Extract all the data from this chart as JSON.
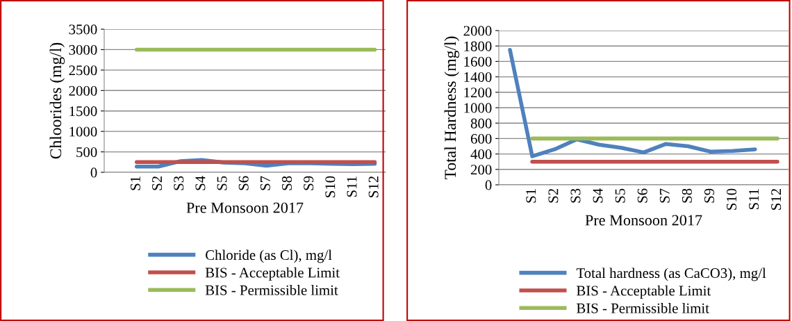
{
  "chart_data": [
    {
      "type": "line",
      "categories": [
        null,
        "S1",
        "S2",
        "S3",
        "S4",
        "S5",
        "S6",
        "S7",
        "S8",
        "S9",
        "S10",
        "S11",
        "S12"
      ],
      "xlabel": "Pre Monsoon 2017",
      "ylabel": "Chloorides (mg/l)",
      "ylim": [
        0,
        3500
      ],
      "yticks": [
        0,
        500,
        1000,
        1500,
        2000,
        2500,
        3000,
        3500
      ],
      "grid": "y",
      "legend": "bottom",
      "series": [
        {
          "name": "Chloride (as Cl), mg/l",
          "color": "#4f81bd",
          "values": [
            null,
            140,
            140,
            270,
            300,
            240,
            220,
            160,
            220,
            220,
            210,
            200,
            210
          ]
        },
        {
          "name": "BIS - Acceptable Limit",
          "color": "#c0504d",
          "values": [
            null,
            250,
            250,
            250,
            250,
            250,
            250,
            250,
            250,
            250,
            250,
            250,
            250
          ]
        },
        {
          "name": "BIS - Permissible limit",
          "color": "#9bbb59",
          "values": [
            null,
            3000,
            3000,
            3000,
            3000,
            3000,
            3000,
            3000,
            3000,
            3000,
            3000,
            3000,
            3000
          ]
        }
      ]
    },
    {
      "type": "line",
      "categories": [
        null,
        "S1",
        "S2",
        "S3",
        "S4",
        "S5",
        "S6",
        "S7",
        "S8",
        "S9",
        "S10",
        "S11",
        "S12"
      ],
      "xlabel": "Pre Monsoon 2017",
      "ylabel": "Total Hardness (mg/l)",
      "ylim": [
        0,
        2000
      ],
      "yticks": [
        0,
        200,
        400,
        600,
        800,
        1000,
        1200,
        1400,
        1600,
        1800,
        2000
      ],
      "grid": "y",
      "legend": "bottom",
      "series": [
        {
          "name": "Total hardness (as CaCO3), mg/l",
          "color": "#4f81bd",
          "values": [
            1750,
            370,
            460,
            590,
            520,
            480,
            420,
            530,
            500,
            430,
            440,
            460,
            null
          ]
        },
        {
          "name": "BIS - Acceptable Limit",
          "color": "#c0504d",
          "values": [
            null,
            300,
            300,
            300,
            300,
            300,
            300,
            300,
            300,
            300,
            300,
            300,
            300
          ]
        },
        {
          "name": "BIS - Permissible limit",
          "color": "#9bbb59",
          "values": [
            null,
            600,
            600,
            600,
            600,
            600,
            600,
            600,
            600,
            600,
            600,
            600,
            600
          ]
        }
      ]
    }
  ]
}
